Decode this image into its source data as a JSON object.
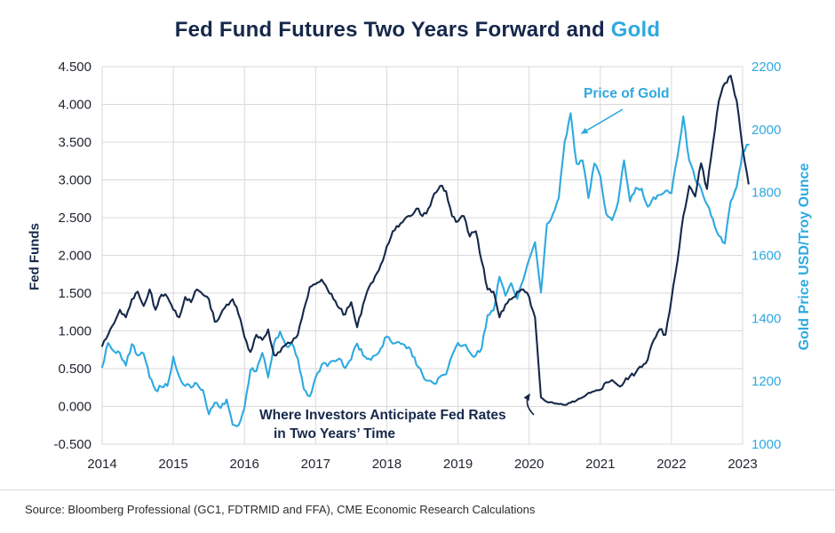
{
  "title": {
    "main": "Fed Fund Futures Two Years Forward and",
    "accent": "Gold"
  },
  "annotations": {
    "gold": "Price of Gold",
    "fed_line1": "Where Investors Anticipate Fed Rates",
    "fed_line2": "in Two Years’ Time"
  },
  "source": "Source: Bloomberg Professional (GC1, FDTRMID and FFA), CME Economic Research Calculations",
  "colors": {
    "navy": "#16284A",
    "blue": "#2EA9E0",
    "grid": "#D9D9D9",
    "tick": "#1F2430"
  },
  "chart_data": {
    "type": "line",
    "title": "Fed Fund Futures Two Years Forward and Gold",
    "grid": true,
    "legend": "none",
    "x_range": [
      2014,
      2023
    ],
    "x_ticks": [
      2014,
      2015,
      2016,
      2017,
      2018,
      2019,
      2020,
      2021,
      2022,
      2023
    ],
    "x_tick_labels": [
      "2014",
      "2015",
      "2016",
      "2017",
      "2018",
      "2019",
      "2020",
      "2021",
      "2022",
      "2023"
    ],
    "x_start_year": 2014,
    "x_step_months": 1,
    "left_axis": {
      "label": "Fed Funds",
      "range": [
        -0.5,
        4.5
      ],
      "ticks": [
        4.5,
        4.0,
        3.5,
        3.0,
        2.5,
        2.0,
        1.5,
        1.0,
        0.5,
        0.0,
        -0.5
      ],
      "tick_labels": [
        "4.500",
        "4.000",
        "3.500",
        "3.000",
        "2.500",
        "2.000",
        "1.500",
        "1.000",
        "0.500",
        "0.000",
        "-0.500"
      ]
    },
    "right_axis": {
      "label": "Gold Price USD/Troy Ounce",
      "range": [
        1000,
        2200
      ],
      "ticks": [
        2200,
        2000,
        1800,
        1600,
        1400,
        1200,
        1000
      ],
      "tick_labels": [
        "2200",
        "2000",
        "1800",
        "1600",
        "1400",
        "1200",
        "1000"
      ]
    },
    "series": [
      {
        "name": "Price of Gold (GC1)",
        "axis": "right",
        "color_key": "blue",
        "data_name": "gold-line",
        "values": [
          1245,
          1322,
          1295,
          1290,
          1250,
          1318,
          1282,
          1288,
          1212,
          1172,
          1182,
          1185,
          1278,
          1215,
          1185,
          1180,
          1192,
          1172,
          1095,
          1132,
          1115,
          1142,
          1062,
          1060,
          1115,
          1235,
          1232,
          1290,
          1212,
          1322,
          1358,
          1312,
          1322,
          1272,
          1175,
          1152,
          1212,
          1252,
          1248,
          1265,
          1272,
          1242,
          1270,
          1320,
          1282,
          1272,
          1282,
          1305,
          1342,
          1320,
          1325,
          1315,
          1302,
          1252,
          1222,
          1202,
          1192,
          1215,
          1222,
          1282,
          1322,
          1315,
          1292,
          1282,
          1305,
          1410,
          1425,
          1532,
          1472,
          1512,
          1462,
          1522,
          1588,
          1642,
          1482,
          1700,
          1732,
          1782,
          1962,
          2052,
          1892,
          1902,
          1782,
          1892,
          1852,
          1732,
          1712,
          1770,
          1902,
          1772,
          1815,
          1812,
          1755,
          1785,
          1792,
          1805,
          1798,
          1912,
          2042,
          1902,
          1842,
          1812,
          1762,
          1715,
          1662,
          1638,
          1772,
          1818,
          1932,
          1952
        ]
      },
      {
        "name": "Fed Fund Futures Two Years Forward",
        "axis": "left",
        "color_key": "navy",
        "data_name": "fed-funds-line",
        "values": [
          0.8,
          0.95,
          1.1,
          1.28,
          1.18,
          1.42,
          1.52,
          1.33,
          1.55,
          1.28,
          1.48,
          1.45,
          1.28,
          1.18,
          1.45,
          1.38,
          1.55,
          1.48,
          1.42,
          1.12,
          1.22,
          1.35,
          1.42,
          1.22,
          0.92,
          0.72,
          0.95,
          0.88,
          1.02,
          0.68,
          0.72,
          0.82,
          0.85,
          0.95,
          1.28,
          1.58,
          1.62,
          1.68,
          1.55,
          1.42,
          1.3,
          1.22,
          1.38,
          1.05,
          1.35,
          1.58,
          1.72,
          1.88,
          2.12,
          2.32,
          2.38,
          2.48,
          2.52,
          2.62,
          2.52,
          2.62,
          2.82,
          2.92,
          2.85,
          2.52,
          2.45,
          2.52,
          2.25,
          2.32,
          1.92,
          1.55,
          1.52,
          1.18,
          1.35,
          1.42,
          1.52,
          1.55,
          1.45,
          1.18,
          0.12,
          0.06,
          0.05,
          0.03,
          0.02,
          0.05,
          0.08,
          0.12,
          0.18,
          0.2,
          0.22,
          0.32,
          0.35,
          0.28,
          0.32,
          0.4,
          0.45,
          0.52,
          0.62,
          0.88,
          1.02,
          0.95,
          1.42,
          1.92,
          2.52,
          2.92,
          2.78,
          3.22,
          2.88,
          3.48,
          4.05,
          4.28,
          4.38,
          4.05,
          3.42,
          2.95
        ]
      }
    ]
  }
}
